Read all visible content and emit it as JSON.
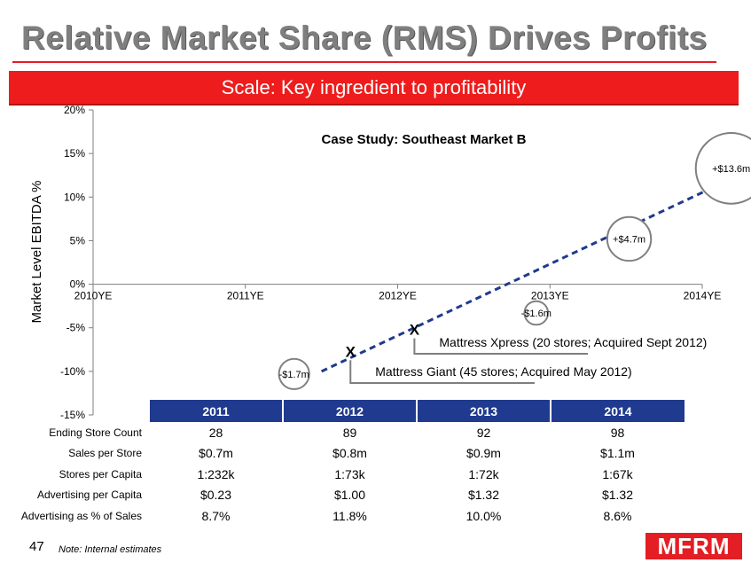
{
  "slide": {
    "title": "Relative Market Share (RMS) Drives Profits",
    "banner": "Scale: Key ingredient to profitability",
    "page_number": "47",
    "note": "Note: Internal estimates",
    "logo_text": "MFRM",
    "accent_color": "#e31e24",
    "table_header_color": "#1f3a8f"
  },
  "chart_data": {
    "type": "line",
    "title": "Case Study: Southeast Market B",
    "ylabel": "Market Level EBITDA %",
    "xlabel": "",
    "ylim": [
      -15,
      20
    ],
    "y_ticks": [
      20,
      15,
      10,
      5,
      0,
      -5,
      -10,
      -15
    ],
    "y_tick_labels": [
      "20%",
      "15%",
      "10%",
      "5%",
      "0%",
      "-5%",
      "-10%",
      "-15%"
    ],
    "categories": [
      "2010YE",
      "2011YE",
      "2012YE",
      "2013YE",
      "2014YE"
    ],
    "line_color": "#1f3a8f",
    "line_style": "dashed",
    "trend_start": [
      1.5,
      -10
    ],
    "trend_end": [
      4.18,
      12
    ],
    "bubbles": [
      {
        "x": 1.32,
        "y": -10.3,
        "label": "-$1.7m",
        "size": 0.9
      },
      {
        "x": 2.91,
        "y": -3.3,
        "label": "-$1.6m",
        "size": 0.7
      },
      {
        "x": 3.52,
        "y": 5.2,
        "label": "+$4.7m",
        "size": 1.3
      },
      {
        "x": 4.19,
        "y": 13.3,
        "label": "+$13.6m",
        "size": 2.1
      }
    ],
    "acquisitions": [
      {
        "x": 1.69,
        "y": -7.7,
        "marker": "X",
        "label": "Mattress Giant (45 stores; Acquired May 2012)"
      },
      {
        "x": 2.11,
        "y": -5.2,
        "marker": "X",
        "label": "Mattress Xpress (20 stores; Acquired Sept 2012)"
      }
    ],
    "grid": false
  },
  "table": {
    "columns": [
      "2011",
      "2012",
      "2013",
      "2014"
    ],
    "rows": [
      {
        "label": "Ending Store Count",
        "values": [
          "28",
          "89",
          "92",
          "98"
        ]
      },
      {
        "label": "Sales per Store",
        "values": [
          "$0.7m",
          "$0.8m",
          "$0.9m",
          "$1.1m"
        ]
      },
      {
        "label": "Stores per Capita",
        "values": [
          "1:232k",
          "1:73k",
          "1:72k",
          "1:67k"
        ]
      },
      {
        "label": "Advertising per Capita",
        "values": [
          "$0.23",
          "$1.00",
          "$1.32",
          "$1.32"
        ]
      },
      {
        "label": "Advertising as % of Sales",
        "values": [
          "8.7%",
          "11.8%",
          "10.0%",
          "8.6%"
        ]
      }
    ]
  }
}
